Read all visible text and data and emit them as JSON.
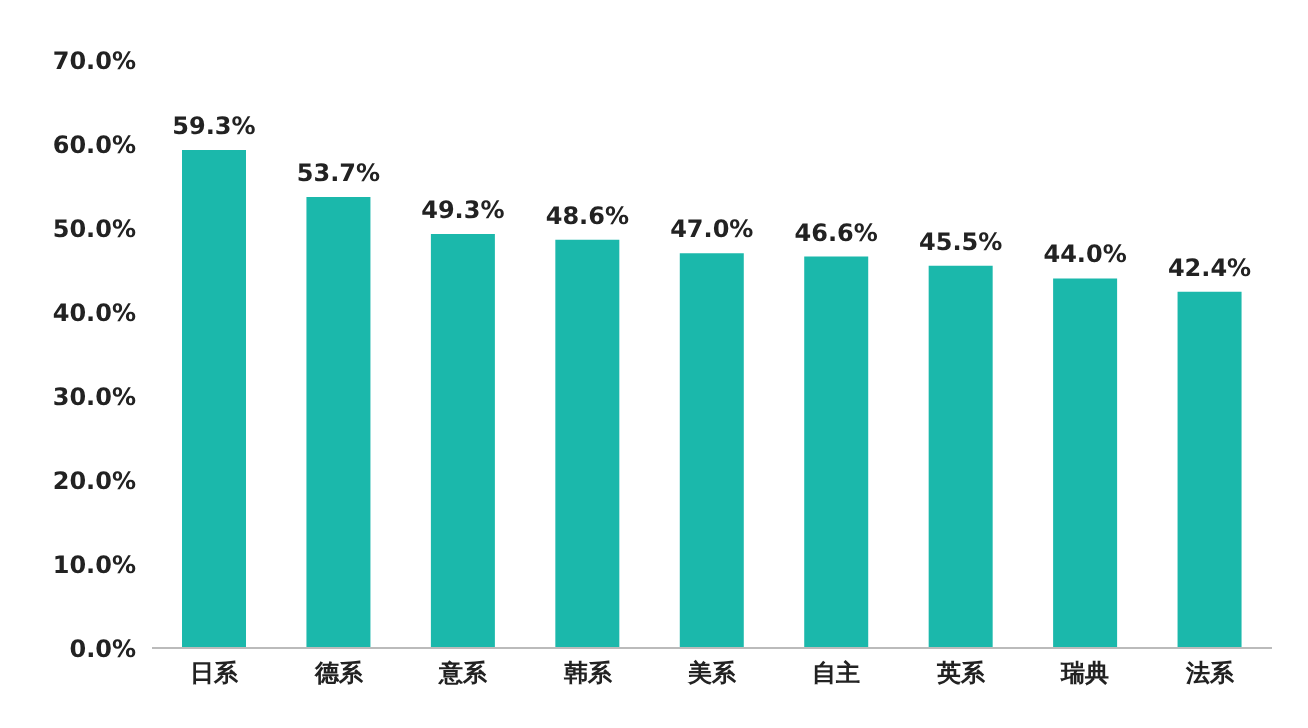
{
  "chart_data": {
    "type": "bar",
    "categories": [
      "日系",
      "德系",
      "意系",
      "韩系",
      "美系",
      "自主",
      "英系",
      "瑞典",
      "法系"
    ],
    "values": [
      59.3,
      53.7,
      49.3,
      48.6,
      47.0,
      46.6,
      45.5,
      44.0,
      42.4
    ],
    "value_labels": [
      "59.3%",
      "53.7%",
      "49.3%",
      "48.6%",
      "47.0%",
      "46.6%",
      "45.5%",
      "44.0%",
      "42.4%"
    ],
    "color": "#1bb8ab",
    "ylim": [
      0,
      70
    ],
    "yticks": [
      {
        "value": 0,
        "label": "0.0%"
      },
      {
        "value": 10,
        "label": "10.0%"
      },
      {
        "value": 20,
        "label": "20.0%"
      },
      {
        "value": 30,
        "label": "30.0%"
      },
      {
        "value": 40,
        "label": "40.0%"
      },
      {
        "value": 50,
        "label": "50.0%"
      },
      {
        "value": 60,
        "label": "60.0%"
      },
      {
        "value": 70,
        "label": "70.0%"
      }
    ],
    "grid": false,
    "legend": false
  }
}
